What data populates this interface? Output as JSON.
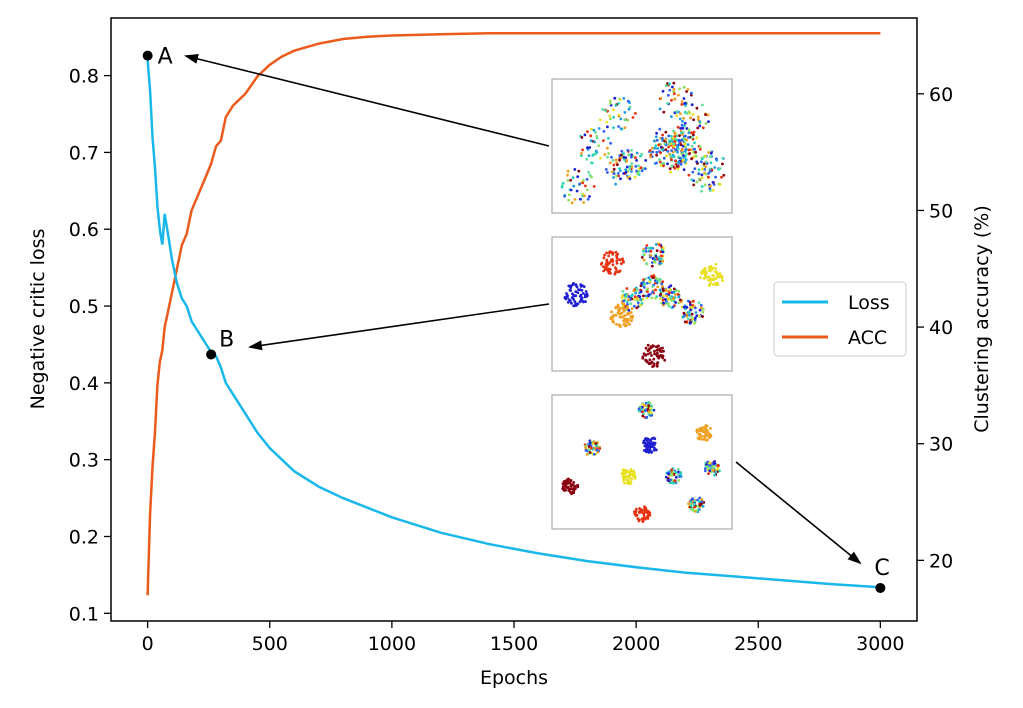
{
  "chart_data": {
    "type": "line",
    "xlabel": "Epochs",
    "ylabel_left": "Negative critic loss",
    "ylabel_right": "Clustering accuracy (%)",
    "xlim": [
      -150,
      3150
    ],
    "ylim_left": [
      0.09,
      0.875
    ],
    "ylim_right": [
      14.8,
      66.5
    ],
    "xticks": [
      "0",
      "500",
      "1000",
      "1500",
      "2000",
      "2500",
      "3000"
    ],
    "yticks_left": [
      "0.1",
      "0.2",
      "0.3",
      "0.4",
      "0.5",
      "0.6",
      "0.7",
      "0.8"
    ],
    "yticks_right": [
      "20",
      "30",
      "40",
      "50",
      "60"
    ],
    "grid": false,
    "legend_position": "center-right",
    "series": [
      {
        "name": "Loss",
        "axis": "left",
        "color": "#1ab8ea",
        "x": [
          0,
          10,
          20,
          30,
          40,
          50,
          60,
          70,
          80,
          100,
          120,
          140,
          160,
          180,
          200,
          220,
          240,
          260,
          280,
          300,
          320,
          350,
          400,
          450,
          500,
          600,
          700,
          800,
          1000,
          1200,
          1400,
          1600,
          1800,
          2000,
          2200,
          2400,
          2600,
          2800,
          3000
        ],
        "y": [
          0.82,
          0.78,
          0.72,
          0.68,
          0.63,
          0.6,
          0.58,
          0.62,
          0.6,
          0.56,
          0.53,
          0.51,
          0.5,
          0.48,
          0.47,
          0.46,
          0.45,
          0.44,
          0.435,
          0.42,
          0.4,
          0.385,
          0.36,
          0.335,
          0.315,
          0.285,
          0.265,
          0.25,
          0.225,
          0.205,
          0.19,
          0.178,
          0.168,
          0.16,
          0.153,
          0.148,
          0.143,
          0.138,
          0.134
        ]
      },
      {
        "name": "ACC",
        "axis": "right",
        "color": "#ec5a1c",
        "x": [
          0,
          10,
          20,
          30,
          40,
          50,
          60,
          70,
          80,
          100,
          120,
          140,
          160,
          180,
          200,
          220,
          240,
          260,
          280,
          300,
          320,
          350,
          400,
          450,
          500,
          550,
          600,
          700,
          800,
          900,
          1000,
          1200,
          1400,
          1600,
          1800,
          2000,
          2200,
          2400,
          2600,
          2800,
          3000
        ],
        "y": [
          17,
          24,
          28,
          31,
          35,
          37,
          38,
          40,
          41,
          43,
          45,
          47,
          48,
          50,
          51,
          52,
          53,
          54,
          55.5,
          56,
          58,
          59,
          60,
          61.5,
          62.5,
          63.2,
          63.7,
          64.3,
          64.7,
          64.9,
          65.0,
          65.1,
          65.2,
          65.2,
          65.2,
          65.2,
          65.2,
          65.2,
          65.2,
          65.2,
          65.2
        ]
      }
    ],
    "markers": [
      {
        "label": "A",
        "x": 0,
        "y": 0.826
      },
      {
        "label": "B",
        "x": 260,
        "y": 0.437
      },
      {
        "label": "C",
        "x": 3000,
        "y": 0.133
      }
    ]
  }
}
